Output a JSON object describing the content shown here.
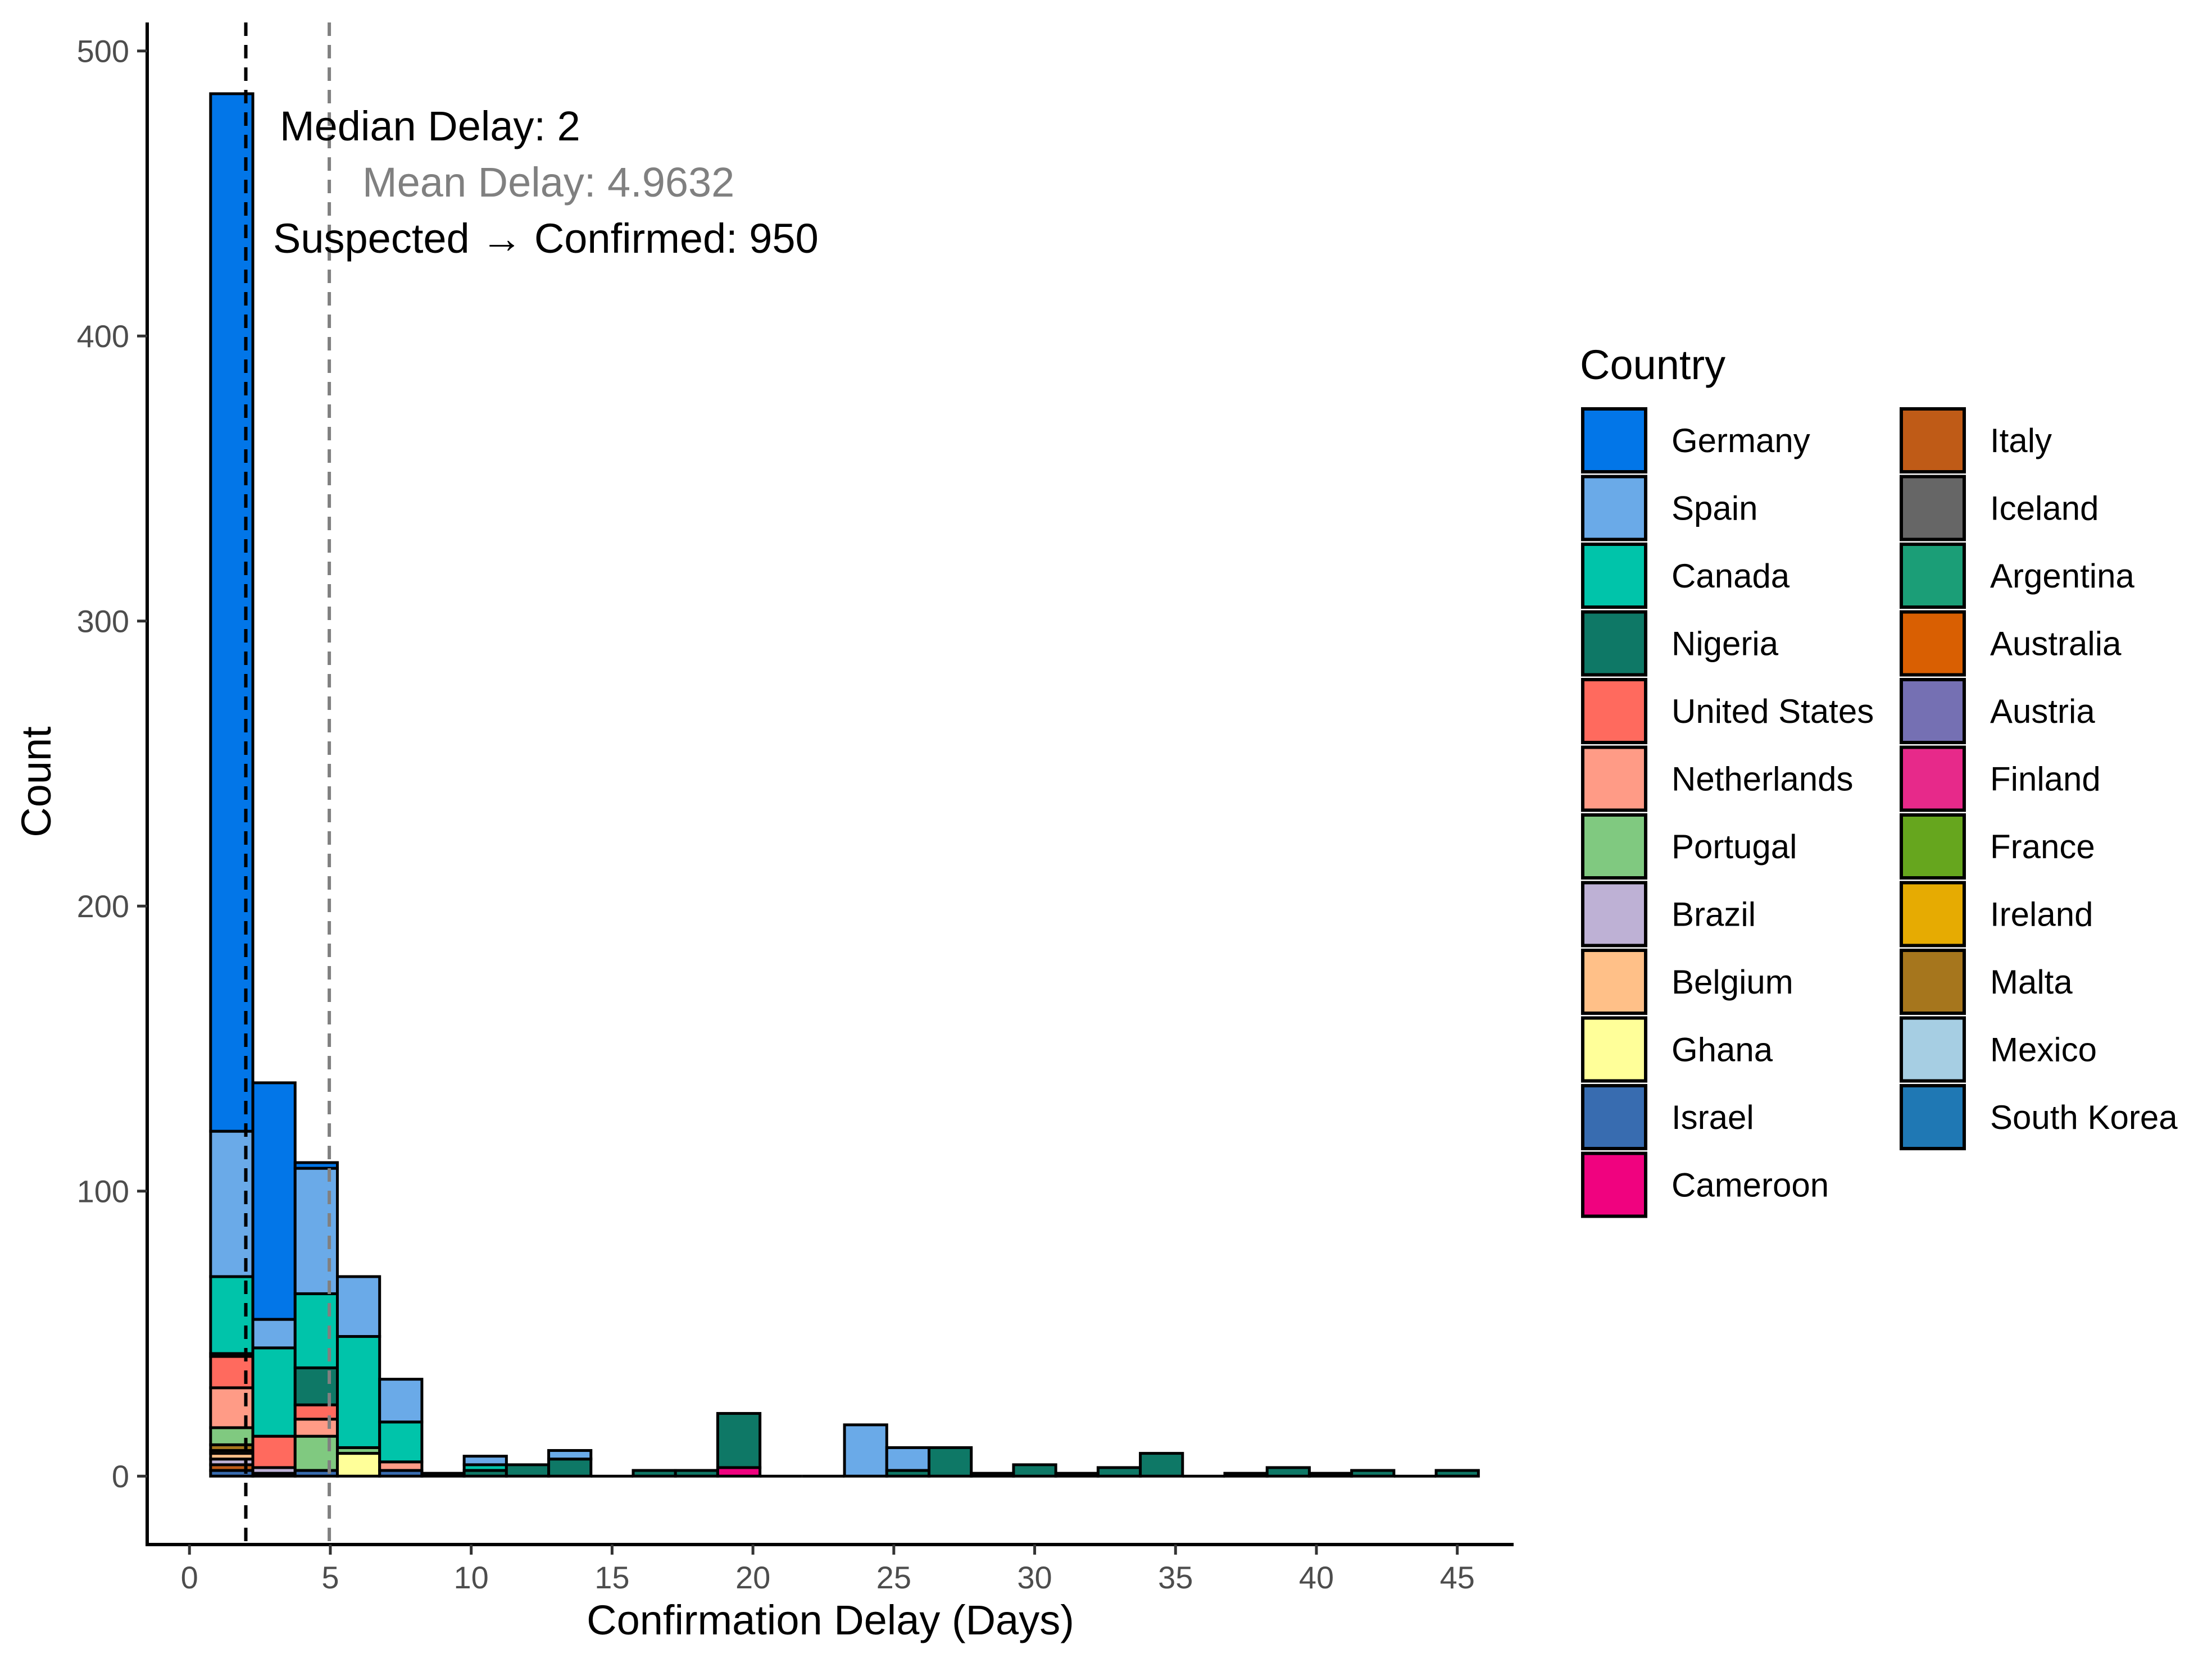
{
  "chart_data": {
    "type": "bar",
    "stacked": true,
    "xlabel": "Confirmation Delay (Days)",
    "ylabel": "Count",
    "xlim": [
      -1.5,
      47
    ],
    "ylim": [
      -24,
      510
    ],
    "x_ticks": [
      0,
      5,
      10,
      15,
      20,
      25,
      30,
      35,
      40,
      45
    ],
    "y_ticks": [
      0,
      100,
      200,
      300,
      400,
      500
    ],
    "bin_width": 1.5,
    "grid": false,
    "legend": {
      "title": "Country",
      "placement": "right",
      "columns": 2,
      "items": [
        {
          "name": "Germany",
          "color": "#0276E8"
        },
        {
          "name": "Spain",
          "color": "#6AAAE8"
        },
        {
          "name": "Canada",
          "color": "#00C4AA"
        },
        {
          "name": "Nigeria",
          "color": "#0E7866"
        },
        {
          "name": "United States",
          "color": "#FF6A5E"
        },
        {
          "name": "Netherlands",
          "color": "#FF9B86"
        },
        {
          "name": "Portugal",
          "color": "#80C980"
        },
        {
          "name": "Brazil",
          "color": "#BEB1D5"
        },
        {
          "name": "Belgium",
          "color": "#FFC088"
        },
        {
          "name": "Ghana",
          "color": "#FFFF99"
        },
        {
          "name": "Israel",
          "color": "#386CB0"
        },
        {
          "name": "Cameroon",
          "color": "#F0027F"
        },
        {
          "name": "Italy",
          "color": "#BF5B17"
        },
        {
          "name": "Iceland",
          "color": "#666666"
        },
        {
          "name": "Argentina",
          "color": "#1B9E77"
        },
        {
          "name": "Australia",
          "color": "#D95F02"
        },
        {
          "name": "Austria",
          "color": "#7570B3"
        },
        {
          "name": "Finland",
          "color": "#E7298A"
        },
        {
          "name": "France",
          "color": "#66A61E"
        },
        {
          "name": "Ireland",
          "color": "#E6AB02"
        },
        {
          "name": "Malta",
          "color": "#A6761D"
        },
        {
          "name": "Mexico",
          "color": "#A6CEE3"
        },
        {
          "name": "South Korea",
          "color": "#1F78B4"
        }
      ]
    },
    "reference_lines": [
      {
        "x": 2,
        "color": "#000000",
        "label": "Median Delay: 2"
      },
      {
        "x": 4.9632,
        "color": "#808080",
        "label": "Mean Delay: 4.9632"
      }
    ],
    "annotations": [
      {
        "text": "Suspected → Confirmed: 950",
        "color": "#000000"
      }
    ],
    "bins": [
      {
        "x0": 0.75,
        "x1": 2.25,
        "stack": [
          {
            "country": "Israel",
            "value": 2
          },
          {
            "country": "Italy",
            "value": 2
          },
          {
            "country": "Brazil",
            "value": 2
          },
          {
            "country": "Belgium",
            "value": 2
          },
          {
            "country": "Ghana",
            "value": 1
          },
          {
            "country": "Malta",
            "value": 2
          },
          {
            "country": "Portugal",
            "value": 6
          },
          {
            "country": "Netherlands",
            "value": 14
          },
          {
            "country": "United States",
            "value": 11
          },
          {
            "country": "Nigeria",
            "value": 1
          },
          {
            "country": "Canada",
            "value": 27
          },
          {
            "country": "Spain",
            "value": 51
          },
          {
            "country": "Germany",
            "value": 364
          }
        ]
      },
      {
        "x0": 2.25,
        "x1": 3.75,
        "stack": [
          {
            "country": "Israel",
            "value": 1
          },
          {
            "country": "Brazil",
            "value": 2
          },
          {
            "country": "United States",
            "value": 11
          },
          {
            "country": "Canada",
            "value": 31
          },
          {
            "country": "Spain",
            "value": 10
          },
          {
            "country": "Germany",
            "value": 83
          }
        ]
      },
      {
        "x0": 3.75,
        "x1": 5.25,
        "stack": [
          {
            "country": "Israel",
            "value": 2
          },
          {
            "country": "Portugal",
            "value": 12
          },
          {
            "country": "Netherlands",
            "value": 6
          },
          {
            "country": "United States",
            "value": 5
          },
          {
            "country": "Nigeria",
            "value": 13
          },
          {
            "country": "Canada",
            "value": 26
          },
          {
            "country": "Spain",
            "value": 44
          },
          {
            "country": "Germany",
            "value": 2
          }
        ]
      },
      {
        "x0": 5.25,
        "x1": 6.75,
        "stack": [
          {
            "country": "Ghana",
            "value": 8
          },
          {
            "country": "Portugal",
            "value": 2
          },
          {
            "country": "Canada",
            "value": 39
          },
          {
            "country": "Spain",
            "value": 21
          }
        ]
      },
      {
        "x0": 6.75,
        "x1": 8.25,
        "stack": [
          {
            "country": "Israel",
            "value": 2
          },
          {
            "country": "Netherlands",
            "value": 3
          },
          {
            "country": "Canada",
            "value": 14
          },
          {
            "country": "Spain",
            "value": 15
          }
        ]
      },
      {
        "x0": 8.25,
        "x1": 9.75,
        "stack": [
          {
            "country": "Nigeria",
            "value": 1
          }
        ]
      },
      {
        "x0": 9.75,
        "x1": 11.25,
        "stack": [
          {
            "country": "Nigeria",
            "value": 2
          },
          {
            "country": "Canada",
            "value": 2
          },
          {
            "country": "Spain",
            "value": 3
          }
        ]
      },
      {
        "x0": 11.25,
        "x1": 12.75,
        "stack": [
          {
            "country": "Nigeria",
            "value": 4
          }
        ]
      },
      {
        "x0": 12.75,
        "x1": 14.25,
        "stack": [
          {
            "country": "Nigeria",
            "value": 6
          },
          {
            "country": "Spain",
            "value": 3
          }
        ]
      },
      {
        "x0": 14.25,
        "x1": 15.75,
        "stack": []
      },
      {
        "x0": 15.75,
        "x1": 17.25,
        "stack": [
          {
            "country": "Nigeria",
            "value": 2
          }
        ]
      },
      {
        "x0": 17.25,
        "x1": 18.75,
        "stack": [
          {
            "country": "Nigeria",
            "value": 2
          }
        ]
      },
      {
        "x0": 18.75,
        "x1": 20.25,
        "stack": [
          {
            "country": "Cameroon",
            "value": 3
          },
          {
            "country": "Nigeria",
            "value": 19
          }
        ]
      },
      {
        "x0": 20.25,
        "x1": 21.75,
        "stack": []
      },
      {
        "x0": 21.75,
        "x1": 23.25,
        "stack": []
      },
      {
        "x0": 23.25,
        "x1": 24.75,
        "stack": [
          {
            "country": "Spain",
            "value": 18
          }
        ]
      },
      {
        "x0": 24.75,
        "x1": 26.25,
        "stack": [
          {
            "country": "Nigeria",
            "value": 2
          },
          {
            "country": "Spain",
            "value": 8
          }
        ]
      },
      {
        "x0": 26.25,
        "x1": 27.75,
        "stack": [
          {
            "country": "Nigeria",
            "value": 10
          }
        ]
      },
      {
        "x0": 27.75,
        "x1": 29.25,
        "stack": [
          {
            "country": "Nigeria",
            "value": 1
          }
        ]
      },
      {
        "x0": 29.25,
        "x1": 30.75,
        "stack": [
          {
            "country": "Nigeria",
            "value": 4
          }
        ]
      },
      {
        "x0": 30.75,
        "x1": 32.25,
        "stack": [
          {
            "country": "Nigeria",
            "value": 1
          }
        ]
      },
      {
        "x0": 32.25,
        "x1": 33.75,
        "stack": [
          {
            "country": "Nigeria",
            "value": 3
          }
        ]
      },
      {
        "x0": 33.75,
        "x1": 35.25,
        "stack": [
          {
            "country": "Nigeria",
            "value": 8
          }
        ]
      },
      {
        "x0": 35.25,
        "x1": 36.75,
        "stack": []
      },
      {
        "x0": 36.75,
        "x1": 38.25,
        "stack": [
          {
            "country": "Nigeria",
            "value": 1
          }
        ]
      },
      {
        "x0": 38.25,
        "x1": 39.75,
        "stack": [
          {
            "country": "Nigeria",
            "value": 3
          }
        ]
      },
      {
        "x0": 39.75,
        "x1": 41.25,
        "stack": [
          {
            "country": "Nigeria",
            "value": 1
          }
        ]
      },
      {
        "x0": 41.25,
        "x1": 42.75,
        "stack": [
          {
            "country": "Nigeria",
            "value": 2
          }
        ]
      },
      {
        "x0": 42.75,
        "x1": 44.25,
        "stack": []
      },
      {
        "x0": 44.25,
        "x1": 45.75,
        "stack": [
          {
            "country": "Nigeria",
            "value": 2
          }
        ]
      }
    ]
  }
}
